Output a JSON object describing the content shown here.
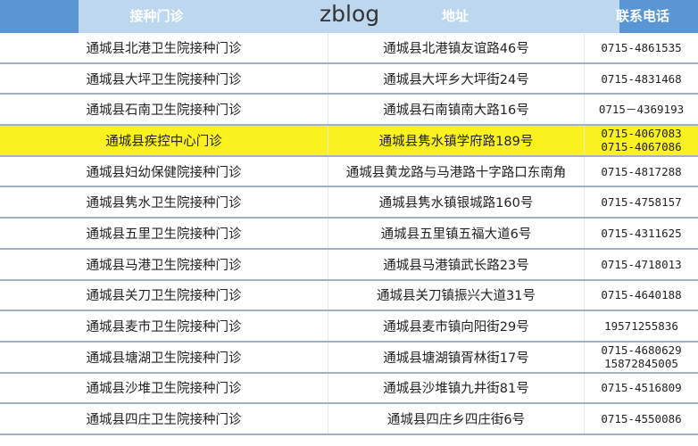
{
  "header": {
    "col_name": "接种门诊",
    "col_address": "地址",
    "col_phone": "联系电话",
    "watermark": "zblog"
  },
  "colors": {
    "header_blue": "#5a96d4",
    "header_overlay": "#bdd7ef",
    "highlight": "#f9f21f"
  },
  "rows": [
    {
      "name": "通城县北港卫生院接种门诊",
      "address": "通城县北港镇友谊路46号",
      "phone": [
        "0715-4861535"
      ]
    },
    {
      "name": "通城县大坪卫生院接种门诊",
      "address": "通城县大坪乡大坪街24号",
      "phone": [
        "0715-4831468"
      ]
    },
    {
      "name": "通城县石南卫生院接种门诊",
      "address": "通城县石南镇南大路16号",
      "phone": [
        "0715－4369193"
      ]
    },
    {
      "name": "通城县疾控中心门诊",
      "address": "通城县隽水镇学府路189号",
      "phone": [
        "0715-4067083",
        "0715-4067086"
      ],
      "highlighted": true
    },
    {
      "name": "通城县妇幼保健院接种门诊",
      "address": "通城县黄龙路与马港路十字路口东南角",
      "phone": [
        "0715-4817288"
      ]
    },
    {
      "name": "通城县隽水卫生院接种门诊",
      "address": "通城县隽水镇银城路160号",
      "phone": [
        "0715-4758157"
      ]
    },
    {
      "name": "通城县五里卫生院接种门诊",
      "address": "通城县五里镇五福大道6号",
      "phone": [
        "0715-4311625"
      ]
    },
    {
      "name": "通城县马港卫生院接种门诊",
      "address": "通城县马港镇武长路23号",
      "phone": [
        "0715-4718013"
      ]
    },
    {
      "name": "通城县关刀卫生院接种门诊",
      "address": "通城县关刀镇振兴大道31号",
      "phone": [
        "0715-4640188"
      ]
    },
    {
      "name": "通城县麦市卫生院接种门诊",
      "address": "通城县麦市镇向阳街29号",
      "phone": [
        "19571255836"
      ]
    },
    {
      "name": "通城县塘湖卫生院接种门诊",
      "address": "通城县塘湖镇胥林街17号",
      "phone": [
        "0715-4680629",
        "15872845005"
      ]
    },
    {
      "name": "通城县沙堆卫生院接种门诊",
      "address": "通城县沙堆镇九井街81号",
      "phone": [
        "0715-4516809"
      ]
    },
    {
      "name": "通城县四庄卫生院接种门诊",
      "address": "通城县四庄乡四庄街6号",
      "phone": [
        "0715-4550086"
      ]
    }
  ]
}
